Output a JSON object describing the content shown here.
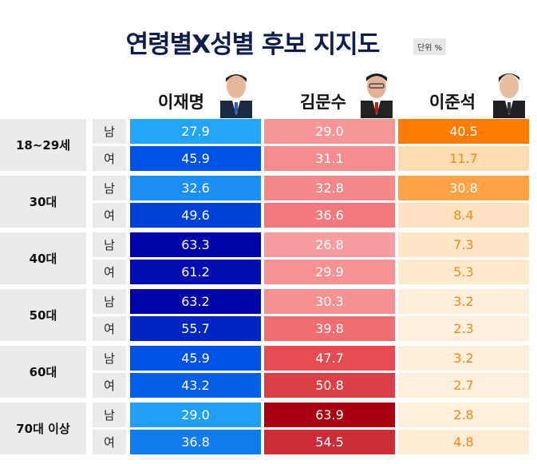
{
  "title": "연령별X성별 후보 지지도",
  "unit": "단위 %",
  "candidates": [
    "이재명",
    "김문수",
    "이준석"
  ],
  "colors": {
    "lee_jm_scale": [
      "#27a9f8",
      "#0053e6",
      "#0000a6"
    ],
    "kim_scale": [
      "#f7a0a2",
      "#f05a5e",
      "#a80010"
    ],
    "lee_js_scale": [
      "#fff1df",
      "#ffc788",
      "#ff7a00"
    ],
    "row_label_bg": "#ebebed",
    "title_color": "#0f1d4a"
  },
  "chart_data": {
    "type": "table",
    "title": "연령별X성별 후보 지지도",
    "unit": "단위 %",
    "columns": [
      "이재명",
      "김문수",
      "이준석"
    ],
    "groups": [
      {
        "label": "18~29세",
        "rows": [
          {
            "sex": "남",
            "values": [
              "27.9",
              "29.0",
              "40.5"
            ]
          },
          {
            "sex": "여",
            "values": [
              "45.9",
              "31.1",
              "11.7"
            ]
          }
        ]
      },
      {
        "label": "30대",
        "rows": [
          {
            "sex": "남",
            "values": [
              "32.6",
              "32.8",
              "30.8"
            ]
          },
          {
            "sex": "여",
            "values": [
              "49.6",
              "36.6",
              "8.4"
            ]
          }
        ]
      },
      {
        "label": "40대",
        "rows": [
          {
            "sex": "남",
            "values": [
              "63.3",
              "26.8",
              "7.3"
            ]
          },
          {
            "sex": "여",
            "values": [
              "61.2",
              "29.9",
              "5.3"
            ]
          }
        ]
      },
      {
        "label": "50대",
        "rows": [
          {
            "sex": "남",
            "values": [
              "63.2",
              "30.3",
              "3.2"
            ]
          },
          {
            "sex": "여",
            "values": [
              "55.7",
              "39.8",
              "2.3"
            ]
          }
        ]
      },
      {
        "label": "60대",
        "rows": [
          {
            "sex": "남",
            "values": [
              "45.9",
              "47.7",
              "3.2"
            ]
          },
          {
            "sex": "여",
            "values": [
              "43.2",
              "50.8",
              "2.7"
            ]
          }
        ]
      },
      {
        "label": "70대 이상",
        "rows": [
          {
            "sex": "남",
            "values": [
              "29.0",
              "63.9",
              "2.8"
            ]
          },
          {
            "sex": "여",
            "values": [
              "36.8",
              "54.5",
              "4.8"
            ]
          }
        ]
      }
    ]
  }
}
